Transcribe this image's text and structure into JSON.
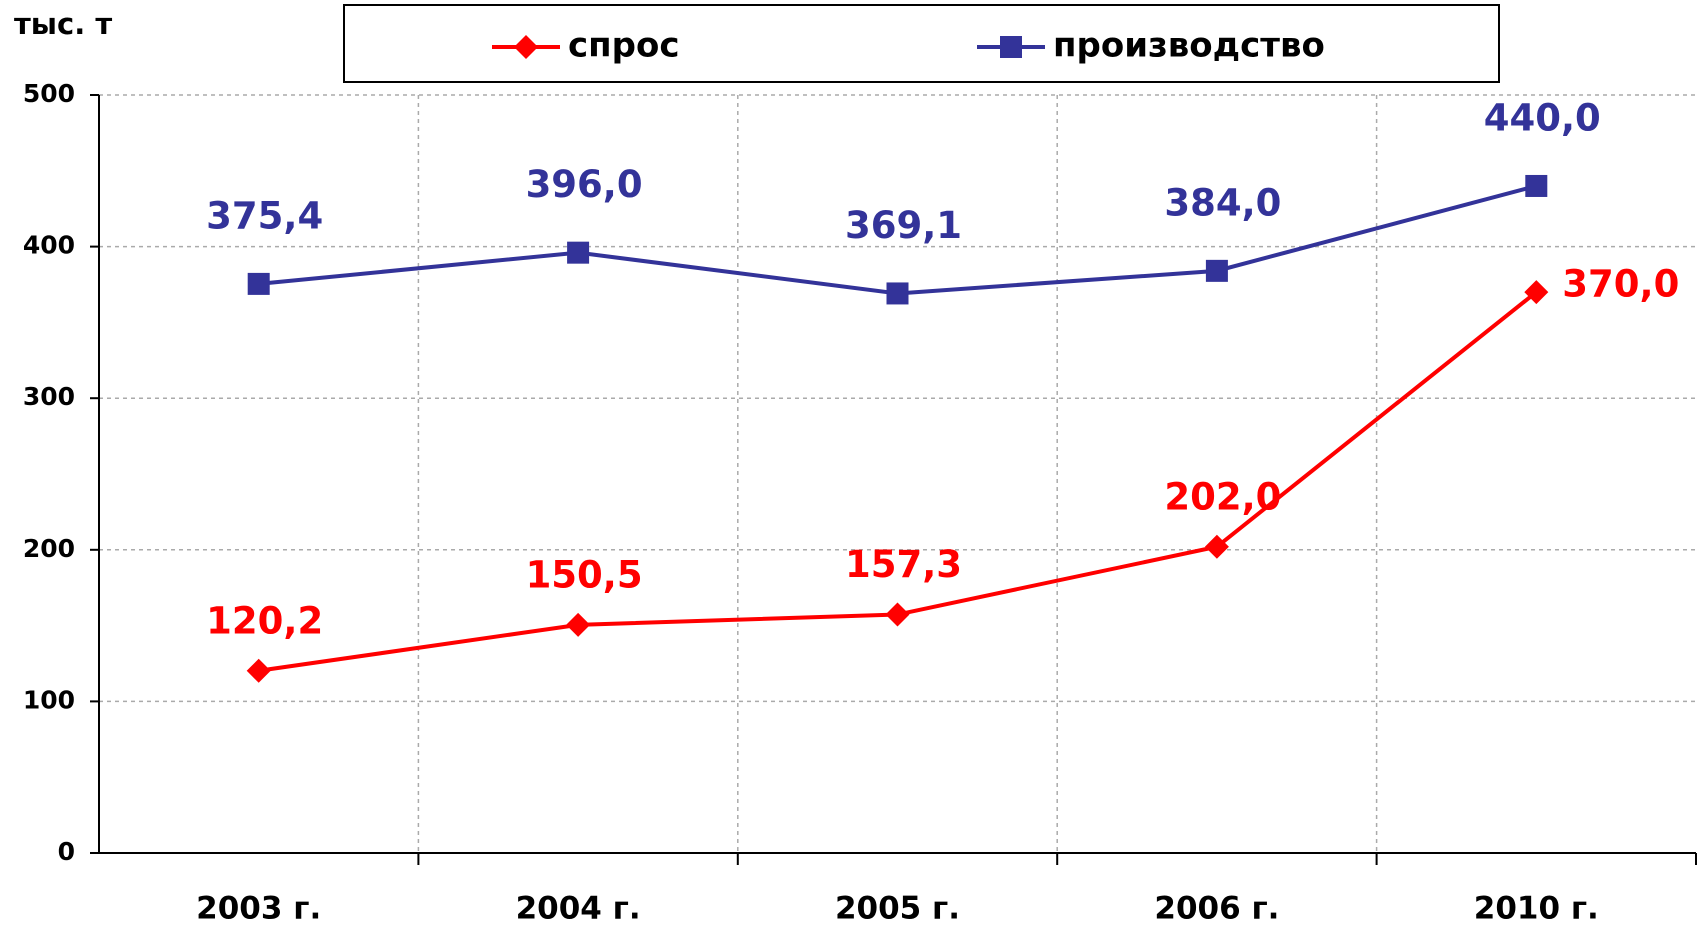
{
  "chart_data": {
    "type": "line",
    "y_label": "тыс. т",
    "categories": [
      "2003 г.",
      "2004 г.",
      "2005 г.",
      "2006 г.",
      "2010 г."
    ],
    "series": [
      {
        "name": "спрос",
        "color": "#ff0000",
        "marker": "diamond",
        "values": [
          120.2,
          150.5,
          157.3,
          202.0,
          370.0
        ],
        "value_labels": [
          "120,2",
          "150,5",
          "157,3",
          "202,0",
          "370,0"
        ]
      },
      {
        "name": "производство",
        "color": "#333399",
        "marker": "square",
        "values": [
          375.4,
          396.0,
          369.1,
          384.0,
          440.0
        ],
        "value_labels": [
          "375,4",
          "396,0",
          "369,1",
          "384,0",
          "440,0"
        ]
      }
    ],
    "ylim": [
      0,
      500
    ],
    "yticks": [
      0,
      100,
      200,
      300,
      400,
      500
    ],
    "grid": true
  }
}
